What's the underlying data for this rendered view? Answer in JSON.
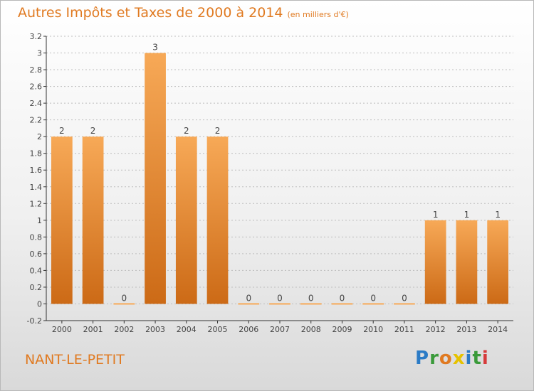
{
  "header": {
    "title": "Autres Impôts et Taxes de 2000 à 2014",
    "unit": "(en milliers d'€)"
  },
  "footer": {
    "place": "NANT-LE-PETIT",
    "logo": {
      "letters": [
        "P",
        "r",
        "o",
        "x",
        "i",
        "t",
        "i"
      ],
      "colors": [
        "#2b7bc6",
        "#3a9a3a",
        "#e07a21",
        "#e6c200",
        "#2b7bc6",
        "#3a9a3a",
        "#d63b3b"
      ]
    }
  },
  "colors": {
    "bar_light": "#f7a957",
    "bar_dark": "#cc6a16",
    "text": "#444444",
    "axis": "#333333",
    "grid": "#bdbdbd"
  },
  "chart_data": {
    "type": "bar",
    "title": "Autres Impôts et Taxes de 2000 à 2014",
    "subtitle": "(en milliers d'€)",
    "categories": [
      "2000",
      "2001",
      "2002",
      "2003",
      "2004",
      "2005",
      "2006",
      "2007",
      "2008",
      "2009",
      "2010",
      "2011",
      "2012",
      "2013",
      "2014"
    ],
    "values": [
      2,
      2,
      0,
      3,
      2,
      2,
      0,
      0,
      0,
      0,
      0,
      0,
      1,
      1,
      1
    ],
    "value_labels": [
      "2",
      "2",
      "0",
      "3",
      "2",
      "2",
      "0",
      "0",
      "0",
      "0",
      "0",
      "0",
      "1",
      "1",
      "1"
    ],
    "ylim": [
      -0.2,
      3.2
    ],
    "yticks": [
      -0.2,
      0,
      0.2,
      0.4,
      0.6,
      0.8,
      1,
      1.2,
      1.4,
      1.6,
      1.8,
      2,
      2.2,
      2.4,
      2.6,
      2.8,
      3,
      3.2
    ],
    "ytick_labels": [
      "-0.2",
      "0",
      "0.2",
      "0.4",
      "0.6",
      "0.8",
      "1",
      "1.2",
      "1.4",
      "1.6",
      "1.8",
      "2",
      "2.2",
      "2.4",
      "2.6",
      "2.8",
      "3",
      "3.2"
    ],
    "grid": true,
    "xlabel": "",
    "ylabel": ""
  }
}
